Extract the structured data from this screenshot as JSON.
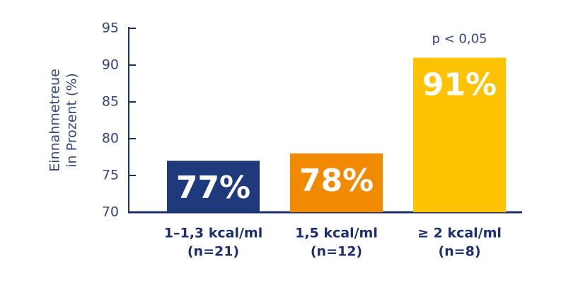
{
  "chart_data": {
    "type": "bar",
    "y_label": [
      "Einnahmetreue",
      "in Prozent (%)"
    ],
    "categories": [
      [
        "1–1,3 kcal/ml",
        "(n=21)"
      ],
      [
        "1,5 kcal/ml",
        "(n=12)"
      ],
      [
        "≥ 2 kcal/ml",
        "(n=8)"
      ]
    ],
    "values": [
      77,
      78,
      91
    ],
    "value_labels": [
      "77%",
      "78%",
      "91%"
    ],
    "colors": [
      "#1e3a7b",
      "#f18a00",
      "#fdc300"
    ],
    "annotations": [
      "p < 0,05"
    ],
    "ylim": [
      70,
      95
    ],
    "yticks": [
      70,
      75,
      80,
      85,
      90,
      95
    ],
    "grid": false
  }
}
